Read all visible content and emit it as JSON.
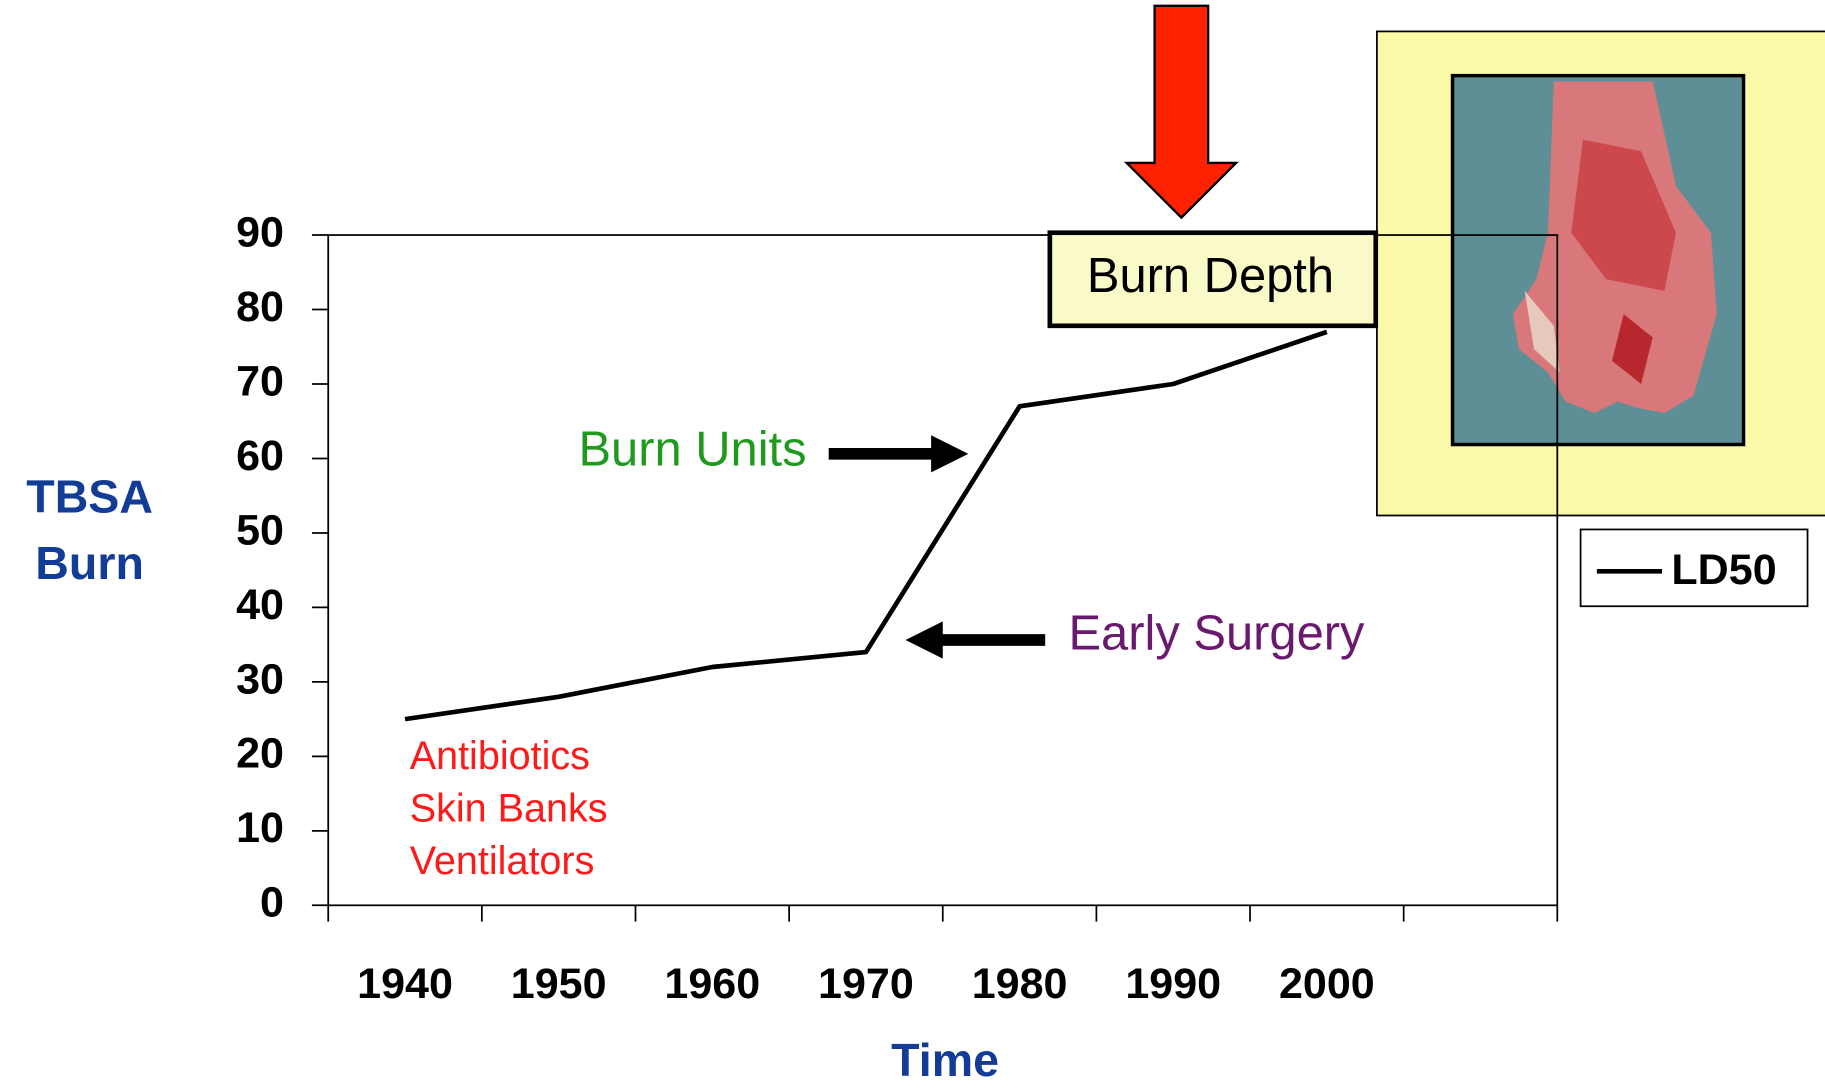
{
  "chart_data": {
    "type": "line",
    "ylabel": [
      "TBSA",
      "Burn"
    ],
    "xlabel": "Time",
    "categories": [
      "1940",
      "1950",
      "1960",
      "1970",
      "1980",
      "1990",
      "2000",
      null
    ],
    "series": [
      {
        "name": "LD50",
        "color": "#000000",
        "values": [
          25,
          28,
          32,
          34,
          67,
          70,
          77,
          null
        ]
      }
    ],
    "ylim": [
      0,
      90
    ],
    "yticks": [
      0,
      10,
      20,
      30,
      40,
      50,
      60,
      70,
      80,
      90
    ],
    "grid": false,
    "legend": "right",
    "annotations": [
      {
        "text": "Burn Units",
        "color": "#1f9a1f"
      },
      {
        "text": "Early Surgery",
        "color": "#6a1a6e"
      },
      {
        "text": "Antibiotics",
        "color": "#ff1a1a"
      },
      {
        "text": "Skin Banks",
        "color": "#ff1a1a"
      },
      {
        "text": "Ventilators",
        "color": "#ff1a1a"
      },
      {
        "text": "Burn Depth",
        "color": "#000000"
      }
    ]
  }
}
